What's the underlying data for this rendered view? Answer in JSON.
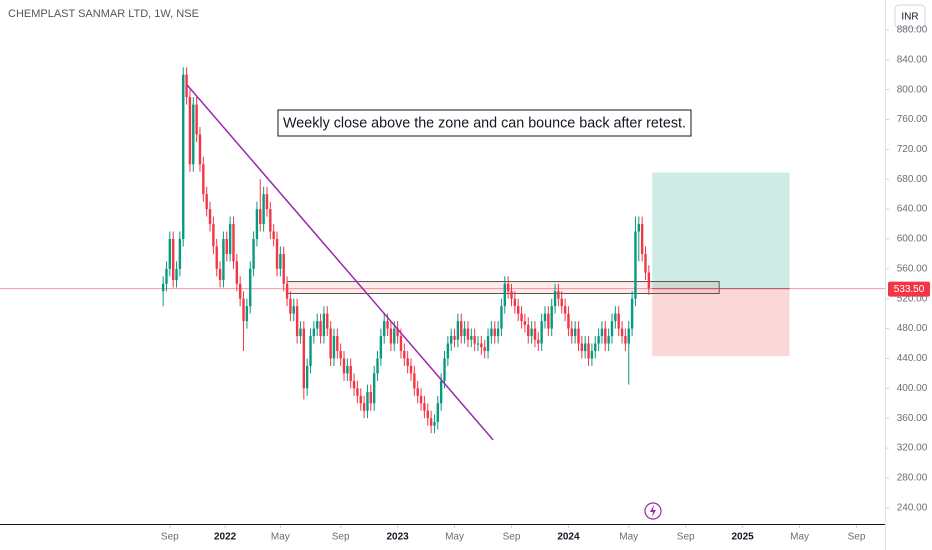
{
  "chart_data": {
    "type": "candlestick",
    "title": "CHEMPLAST SANMAR LTD, 1W, NSE",
    "currency": "INR",
    "annotation": "Weekly close above the zone and can bounce back after retest.",
    "up_color": "#089981",
    "down_color": "#f23645",
    "xlim": [
      -48.7,
      215.5
    ],
    "ylim": [
      217,
      920
    ],
    "xticks": [
      {
        "value": 2,
        "label": "Sep"
      },
      {
        "value": 18.5,
        "label": "2022"
      },
      {
        "value": 35,
        "label": "May"
      },
      {
        "value": 53,
        "label": "Sep"
      },
      {
        "value": 70,
        "label": "2023"
      },
      {
        "value": 87,
        "label": "May"
      },
      {
        "value": 104,
        "label": "Sep"
      },
      {
        "value": 121,
        "label": "2024"
      },
      {
        "value": 139,
        "label": "May"
      },
      {
        "value": 156,
        "label": "Sep"
      },
      {
        "value": 173,
        "label": "2025"
      },
      {
        "value": 190,
        "label": "May"
      },
      {
        "value": 207,
        "label": "Sep"
      }
    ],
    "yticks": [
      {
        "value": 240,
        "label": "240.00"
      },
      {
        "value": 280,
        "label": "280.00"
      },
      {
        "value": 320,
        "label": "320.00"
      },
      {
        "value": 360,
        "label": "360.00"
      },
      {
        "value": 400,
        "label": "400.00"
      },
      {
        "value": 440,
        "label": "440.00"
      },
      {
        "value": 480,
        "label": "480.00"
      },
      {
        "value": 520,
        "label": "520.00"
      },
      {
        "value": 560,
        "label": "560.00"
      },
      {
        "value": 600,
        "label": "600.00"
      },
      {
        "value": 640,
        "label": "640.00"
      },
      {
        "value": 680,
        "label": "680.00"
      },
      {
        "value": 720,
        "label": "720.00"
      },
      {
        "value": 760,
        "label": "760.00"
      },
      {
        "value": 800,
        "label": "800.00"
      },
      {
        "value": 840,
        "label": "840.00"
      },
      {
        "value": 880,
        "label": "880.00"
      }
    ],
    "last_price": {
      "value": 533.5,
      "label": "533.50"
    },
    "trendline": {
      "color": "#9c27b0",
      "x": [
        7.2,
        98.5
      ],
      "y": [
        806,
        331
      ]
    },
    "zone": {
      "x": [
        37,
        166
      ],
      "y": [
        527,
        543
      ]
    },
    "position": {
      "x": [
        146,
        187
      ],
      "entry": 533.5,
      "target": 689,
      "stop": 443
    },
    "ohlc": [
      [
        530,
        550,
        510,
        540
      ],
      [
        540,
        570,
        530,
        560
      ],
      [
        560,
        610,
        550,
        600
      ],
      [
        600,
        610,
        535,
        545
      ],
      [
        545,
        570,
        535,
        560
      ],
      [
        560,
        610,
        550,
        600
      ],
      [
        600,
        830,
        590,
        820
      ],
      [
        820,
        830,
        780,
        790
      ],
      [
        790,
        800,
        690,
        700
      ],
      [
        700,
        790,
        690,
        780
      ],
      [
        780,
        790,
        730,
        740
      ],
      [
        740,
        750,
        690,
        700
      ],
      [
        700,
        710,
        650,
        660
      ],
      [
        660,
        670,
        630,
        640
      ],
      [
        640,
        650,
        610,
        620
      ],
      [
        620,
        630,
        580,
        590
      ],
      [
        590,
        600,
        550,
        560
      ],
      [
        560,
        570,
        535,
        545
      ],
      [
        545,
        610,
        535,
        600
      ],
      [
        600,
        610,
        570,
        580
      ],
      [
        580,
        630,
        570,
        620
      ],
      [
        620,
        630,
        560,
        570
      ],
      [
        570,
        580,
        530,
        540
      ],
      [
        540,
        550,
        510,
        520
      ],
      [
        520,
        530,
        450,
        490
      ],
      [
        490,
        520,
        480,
        510
      ],
      [
        510,
        570,
        500,
        560
      ],
      [
        560,
        610,
        550,
        600
      ],
      [
        600,
        650,
        590,
        640
      ],
      [
        640,
        680,
        610,
        620
      ],
      [
        620,
        670,
        610,
        660
      ],
      [
        660,
        670,
        630,
        640
      ],
      [
        640,
        650,
        600,
        610
      ],
      [
        610,
        620,
        590,
        600
      ],
      [
        600,
        610,
        550,
        560
      ],
      [
        560,
        590,
        550,
        580
      ],
      [
        580,
        590,
        530,
        540
      ],
      [
        540,
        550,
        510,
        520
      ],
      [
        520,
        530,
        490,
        500
      ],
      [
        500,
        520,
        490,
        510
      ],
      [
        510,
        520,
        460,
        470
      ],
      [
        470,
        490,
        460,
        480
      ],
      [
        480,
        490,
        385,
        400
      ],
      [
        400,
        440,
        390,
        430
      ],
      [
        430,
        480,
        420,
        470
      ],
      [
        470,
        490,
        460,
        480
      ],
      [
        480,
        500,
        470,
        490
      ],
      [
        490,
        500,
        460,
        470
      ],
      [
        470,
        510,
        460,
        500
      ],
      [
        500,
        510,
        470,
        480
      ],
      [
        480,
        490,
        430,
        440
      ],
      [
        440,
        480,
        430,
        470
      ],
      [
        470,
        480,
        440,
        450
      ],
      [
        450,
        460,
        430,
        440
      ],
      [
        440,
        450,
        410,
        420
      ],
      [
        420,
        440,
        410,
        430
      ],
      [
        430,
        440,
        400,
        410
      ],
      [
        410,
        420,
        390,
        400
      ],
      [
        400,
        410,
        380,
        390
      ],
      [
        390,
        400,
        370,
        380
      ],
      [
        380,
        390,
        360,
        370
      ],
      [
        370,
        405,
        360,
        395
      ],
      [
        395,
        405,
        370,
        380
      ],
      [
        380,
        430,
        370,
        420
      ],
      [
        420,
        450,
        410,
        440
      ],
      [
        440,
        480,
        430,
        470
      ],
      [
        470,
        500,
        460,
        490
      ],
      [
        490,
        500,
        470,
        480
      ],
      [
        480,
        490,
        450,
        460
      ],
      [
        460,
        490,
        450,
        480
      ],
      [
        480,
        490,
        460,
        470
      ],
      [
        470,
        480,
        440,
        450
      ],
      [
        450,
        460,
        430,
        440
      ],
      [
        440,
        450,
        420,
        430
      ],
      [
        430,
        440,
        410,
        420
      ],
      [
        420,
        430,
        390,
        400
      ],
      [
        400,
        410,
        380,
        390
      ],
      [
        390,
        400,
        370,
        380
      ],
      [
        380,
        390,
        360,
        370
      ],
      [
        370,
        380,
        350,
        360
      ],
      [
        360,
        370,
        340,
        350
      ],
      [
        350,
        365,
        340,
        355
      ],
      [
        355,
        390,
        345,
        380
      ],
      [
        380,
        420,
        370,
        410
      ],
      [
        410,
        450,
        400,
        440
      ],
      [
        440,
        470,
        430,
        460
      ],
      [
        460,
        480,
        450,
        470
      ],
      [
        470,
        480,
        455,
        465
      ],
      [
        465,
        500,
        455,
        490
      ],
      [
        490,
        500,
        460,
        470
      ],
      [
        470,
        490,
        460,
        480
      ],
      [
        480,
        490,
        455,
        465
      ],
      [
        465,
        480,
        455,
        470
      ],
      [
        470,
        480,
        450,
        460
      ],
      [
        460,
        470,
        450,
        460
      ],
      [
        460,
        470,
        445,
        455
      ],
      [
        455,
        465,
        440,
        450
      ],
      [
        450,
        480,
        440,
        470
      ],
      [
        470,
        490,
        460,
        480
      ],
      [
        480,
        490,
        460,
        470
      ],
      [
        470,
        490,
        460,
        480
      ],
      [
        480,
        520,
        470,
        510
      ],
      [
        510,
        550,
        500,
        540
      ],
      [
        540,
        550,
        520,
        530
      ],
      [
        530,
        540,
        510,
        520
      ],
      [
        520,
        530,
        500,
        510
      ],
      [
        510,
        520,
        490,
        500
      ],
      [
        500,
        510,
        480,
        490
      ],
      [
        490,
        500,
        475,
        485
      ],
      [
        485,
        495,
        460,
        470
      ],
      [
        470,
        490,
        460,
        480
      ],
      [
        480,
        490,
        455,
        465
      ],
      [
        465,
        475,
        450,
        460
      ],
      [
        460,
        500,
        450,
        490
      ],
      [
        490,
        510,
        480,
        500
      ],
      [
        500,
        510,
        470,
        480
      ],
      [
        480,
        520,
        470,
        510
      ],
      [
        510,
        540,
        500,
        530
      ],
      [
        530,
        540,
        510,
        520
      ],
      [
        520,
        530,
        500,
        510
      ],
      [
        510,
        520,
        490,
        500
      ],
      [
        500,
        510,
        470,
        480
      ],
      [
        480,
        490,
        460,
        470
      ],
      [
        470,
        490,
        460,
        480
      ],
      [
        480,
        490,
        450,
        460
      ],
      [
        460,
        470,
        440,
        450
      ],
      [
        450,
        470,
        440,
        460
      ],
      [
        460,
        470,
        430,
        440
      ],
      [
        440,
        460,
        430,
        450
      ],
      [
        450,
        470,
        440,
        460
      ],
      [
        460,
        480,
        450,
        470
      ],
      [
        470,
        490,
        460,
        480
      ],
      [
        480,
        490,
        450,
        460
      ],
      [
        460,
        480,
        450,
        470
      ],
      [
        470,
        500,
        460,
        490
      ],
      [
        490,
        510,
        480,
        500
      ],
      [
        500,
        510,
        470,
        480
      ],
      [
        480,
        490,
        460,
        470
      ],
      [
        470,
        480,
        450,
        460
      ],
      [
        460,
        490,
        405,
        480
      ],
      [
        480,
        530,
        470,
        520
      ],
      [
        520,
        630,
        510,
        610
      ],
      [
        610,
        630,
        570,
        620
      ],
      [
        620,
        630,
        570,
        580
      ],
      [
        580,
        590,
        545,
        555
      ],
      [
        555,
        565,
        525,
        533.5
      ]
    ]
  }
}
